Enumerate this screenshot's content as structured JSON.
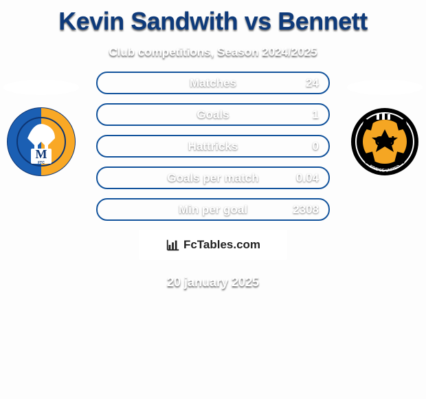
{
  "theme": {
    "background_color": "#fdfdfd",
    "title_color": "#0e3a7a",
    "subtitle_color": "#ffffff",
    "date_color": "#ffffff",
    "row_border": "#12539c",
    "row_bg": "rgba(255,255,255,0.12)"
  },
  "title": "Kevin Sandwith vs Bennett",
  "subtitle": "Club competitions, Season 2024/2025",
  "stats": [
    {
      "label": "Matches",
      "value": "24"
    },
    {
      "label": "Goals",
      "value": "1"
    },
    {
      "label": "Hattricks",
      "value": "0"
    },
    {
      "label": "Goals per match",
      "value": "0.04"
    },
    {
      "label": "Min per goal",
      "value": "2308"
    }
  ],
  "watermark": "FcTables.com",
  "date": "20 january 2025",
  "left_crest": {
    "bg": "#fff",
    "stripe": "#f9a825",
    "left": "#1b5fb3",
    "letter_bg": "#ffffff",
    "letter": "M",
    "letter_sub": "FTC",
    "letter_color": "#0d3573"
  },
  "right_crest": {
    "outer": "#000000",
    "ball": "#f5a623",
    "stripe": "#000000",
    "text": "CU",
    "sub": "BRIDGE UNITED"
  }
}
